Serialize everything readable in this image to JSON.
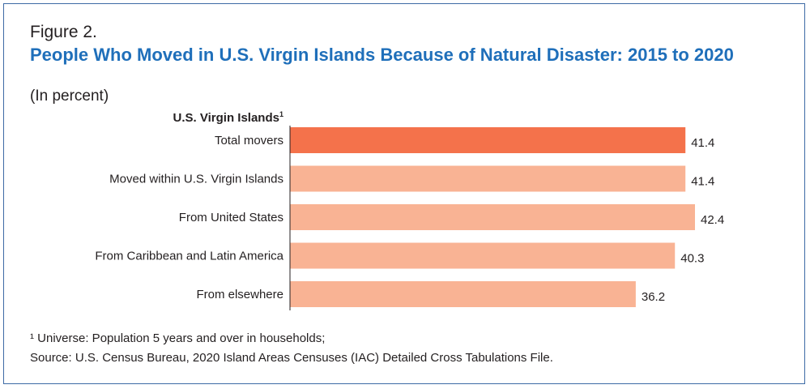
{
  "figure": {
    "label": "Figure 2.",
    "title": "People Who Moved in U.S. Virgin Islands Because of Natural Disaster: 2015 to 2020",
    "subtitle": "(In percent)"
  },
  "chart_data": {
    "type": "bar",
    "orientation": "horizontal",
    "group_label": "U.S. Virgin Islands",
    "group_label_superscript": "1",
    "categories": [
      "Total movers",
      "Moved within U.S. Virgin Islands",
      "From United States",
      "From Caribbean and Latin America",
      "From elsewhere"
    ],
    "values": [
      41.4,
      41.4,
      42.4,
      40.3,
      36.2
    ],
    "value_labels": [
      "41.4",
      "41.4",
      "42.4",
      "40.3",
      "36.2"
    ],
    "colors": [
      "#f4724b",
      "#f9b394",
      "#f9b394",
      "#f9b394",
      "#f9b394"
    ],
    "xlim": [
      0,
      42.4
    ],
    "grid": false
  },
  "footnotes": {
    "universe": "¹ Universe: Population 5 years and over in households;",
    "source": "Source: U.S. Census Bureau, 2020 Island Areas Censuses (IAC) Detailed Cross Tabulations File."
  }
}
